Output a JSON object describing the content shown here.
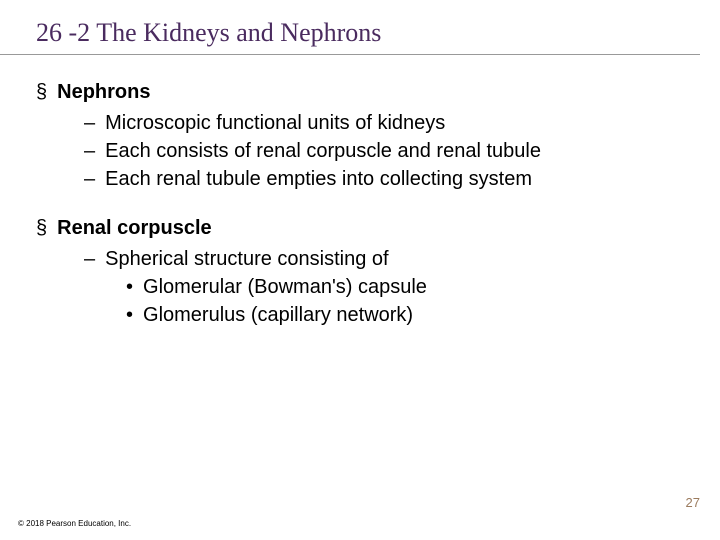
{
  "title": "26 -2 The Kidneys and Nephrons",
  "sections": [
    {
      "heading": "Nephrons",
      "dash_items": [
        "Microscopic functional units of kidneys",
        "Each consists of renal corpuscle and renal tubule",
        "Each renal tubule empties into collecting system"
      ],
      "dot_items": []
    },
    {
      "heading": "Renal corpuscle",
      "dash_items": [
        "Spherical structure consisting of"
      ],
      "dot_items": [
        "Glomerular (Bowman's) capsule",
        "Glomerulus (capillary network)"
      ]
    }
  ],
  "page_number": "27",
  "copyright": "© 2018 Pearson Education, Inc.",
  "colors": {
    "title_color": "#4a2b5f",
    "page_number_color": "#9b7b5e",
    "text_color": "#000000",
    "background": "#ffffff"
  },
  "typography": {
    "title_font": "Times New Roman",
    "body_font": "Arial",
    "title_size_pt": 20,
    "body_size_pt": 15,
    "copyright_size_pt": 6
  },
  "markers": {
    "section": "§",
    "dash": "–",
    "dot": "•"
  }
}
